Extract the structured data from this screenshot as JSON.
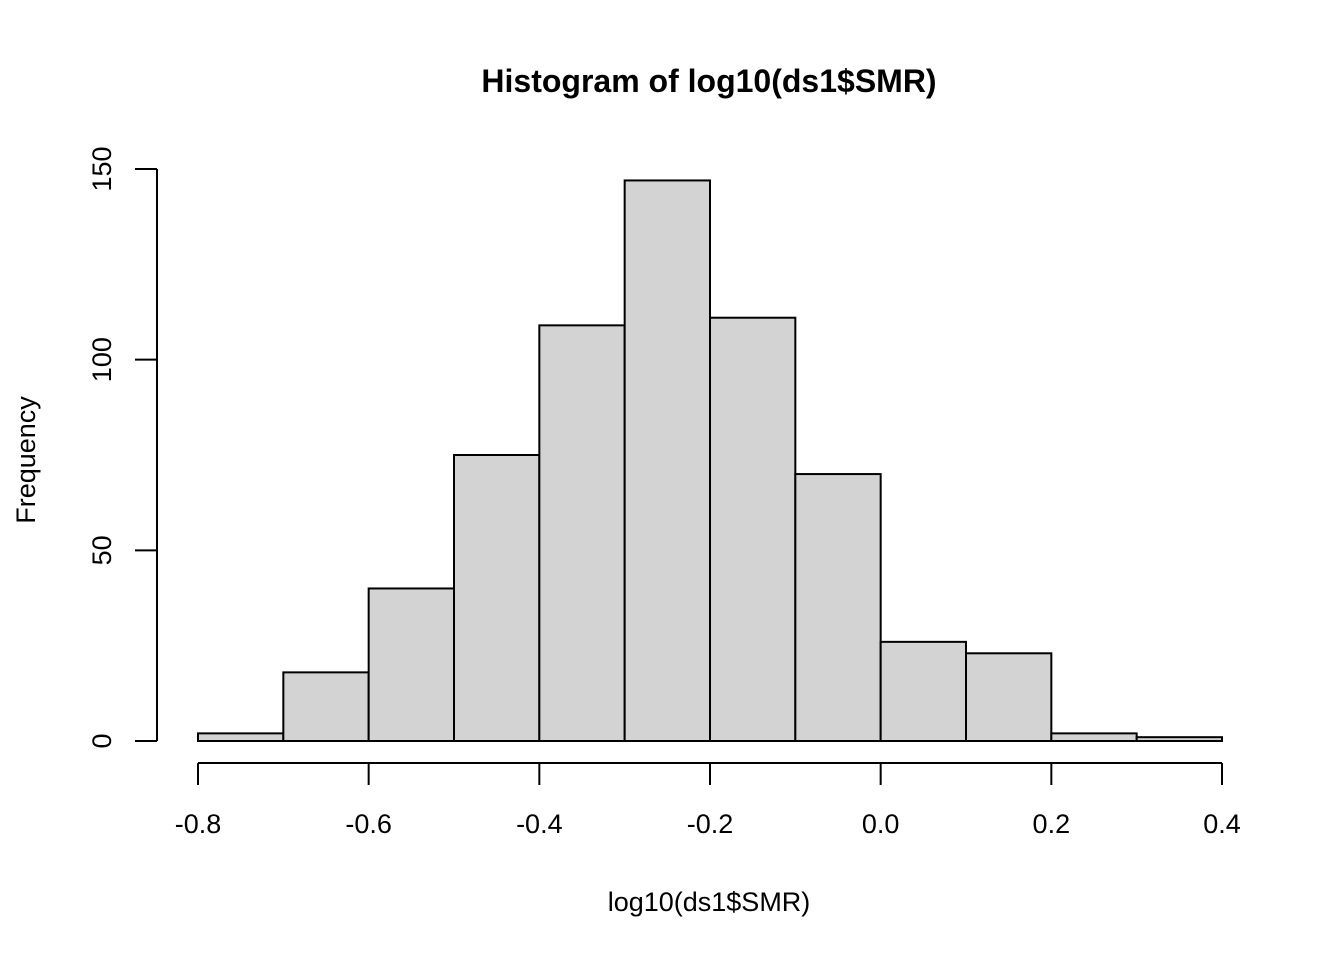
{
  "chart_data": {
    "type": "bar",
    "title": "Histogram of log10(ds1$SMR)",
    "xlabel": "log10(ds1$SMR)",
    "ylabel": "Frequency",
    "bin_edges": [
      -0.8,
      -0.7,
      -0.6,
      -0.5,
      -0.4,
      -0.3,
      -0.2,
      -0.1,
      0.0,
      0.1,
      0.2,
      0.3,
      0.4
    ],
    "values": [
      2,
      18,
      40,
      75,
      109,
      147,
      111,
      70,
      26,
      23,
      2,
      1
    ],
    "xlim": [
      -0.8,
      0.4
    ],
    "ylim": [
      0,
      150
    ],
    "x_ticks": [
      -0.8,
      -0.6,
      -0.4,
      -0.2,
      0.0,
      0.2,
      0.4
    ],
    "x_tick_labels": [
      "-0.8",
      "-0.6",
      "-0.4",
      "-0.2",
      "0.0",
      "0.2",
      "0.4"
    ],
    "y_ticks": [
      0,
      50,
      100,
      150
    ],
    "y_tick_labels": [
      "0",
      "50",
      "100",
      "150"
    ],
    "bar_color": "#d3d3d3",
    "border_color": "#000000",
    "grid": false
  }
}
